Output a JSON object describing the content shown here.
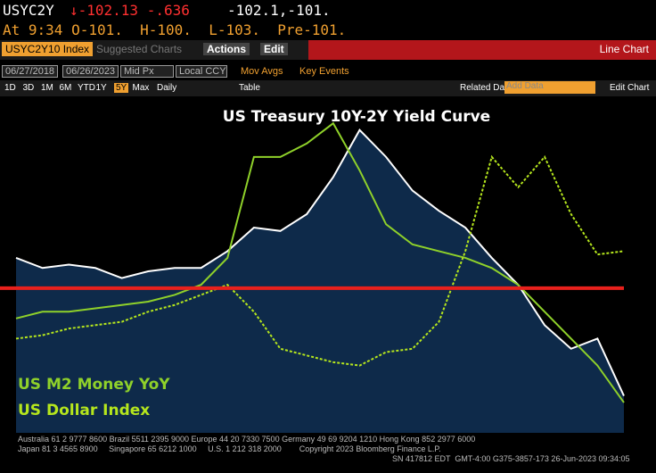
{
  "header": {
    "ticker": "USYC2Y",
    "change": "↓-102.13 -.636",
    "bidask": "-102.1,-101.",
    "quote_line": "At 9:34 O-101.  H-100.  L-103.  Pre-101."
  },
  "toolbar": {
    "security": "USYC2Y10 Index",
    "suggested": "Suggested Charts",
    "actions": "Actions",
    "edit": "Edit",
    "chart_kind": "Line Chart"
  },
  "settings": {
    "start": "06/27/2018",
    "end": "06/26/2023",
    "price": "Mid Px",
    "currency": "Local CCY",
    "mov_avgs": "Mov Avgs",
    "key_events": "Key Events"
  },
  "periods": {
    "buttons": [
      "1D",
      "3D",
      "1M",
      "6M",
      "YTD",
      "1Y",
      "5Y",
      "Max"
    ],
    "frequency": "Daily",
    "table": "Table",
    "related": "Related Dat",
    "add_data": "Add Data",
    "edit_chart": "Edit Chart"
  },
  "chart_data": {
    "type": "line",
    "title": "US Treasury 10Y-2Y Yield Curve",
    "ylim": [
      0,
      100
    ],
    "series": [
      {
        "color": "#ffffff",
        "values": [
          52,
          49,
          50,
          49,
          46,
          48,
          49,
          49,
          54,
          61,
          60,
          65,
          76,
          90,
          82,
          72,
          66,
          61,
          52,
          44,
          32,
          25,
          28,
          11
        ]
      },
      {
        "name": "US M2 Money YoY",
        "color": "#8fd12a",
        "values": [
          34,
          36,
          36,
          37,
          38,
          39,
          41,
          44,
          52,
          82,
          82,
          86,
          92,
          78,
          62,
          56,
          54,
          52,
          49,
          44,
          36,
          28,
          20,
          9
        ]
      },
      {
        "name": "US Dollar Index",
        "color": "#b5e61d",
        "dashed": true,
        "values": [
          28,
          29,
          31,
          32,
          33,
          36,
          38,
          41,
          44,
          36,
          25,
          23,
          21,
          20,
          24,
          25,
          33,
          54,
          82,
          73,
          82,
          65,
          53,
          54
        ]
      }
    ],
    "reference_line": {
      "value": 43,
      "color": "#e8201c"
    }
  },
  "footer": {
    "line1": "Australia 61 2 9777 8600 Brazil 5511 2395 9000 Europe 44 20 7330 7500 Germany 49 69 9204 1210 Hong Kong 852 2977 6000",
    "line2": "Japan 81 3 4565 8900     Singapore 65 6212 1000     U.S. 1 212 318 2000        Copyright 2023 Bloomberg Finance L.P.",
    "line3": "SN 417812 EDT  GMT-4:00 G375-3857-173 26-Jun-2023 09:34:05"
  }
}
